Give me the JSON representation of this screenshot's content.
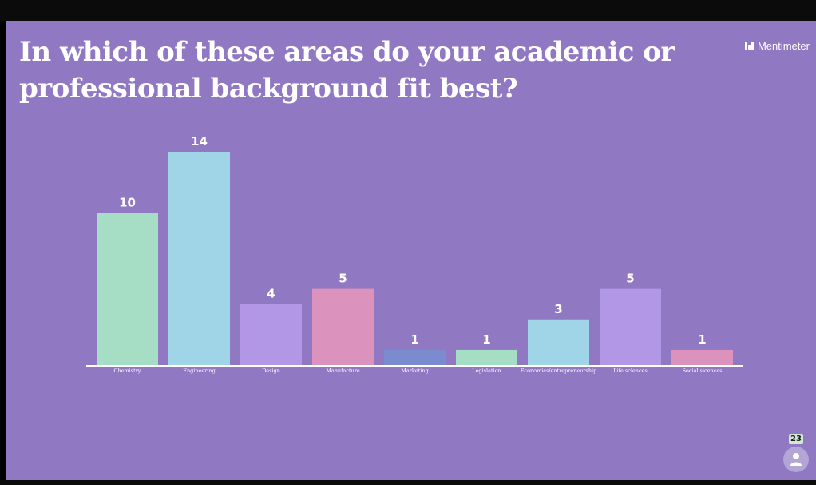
{
  "slide": {
    "title": "In which of these areas do your academic or professional background fit best?",
    "brand": "Mentimeter",
    "background_color": "#9178c3",
    "participants_count": "23"
  },
  "chart_data": {
    "type": "bar",
    "title": "In which of these areas do your academic or professional background fit best?",
    "xlabel": "",
    "ylabel": "",
    "ylim": [
      0,
      14
    ],
    "grid": false,
    "categories": [
      "Chemistry",
      "Engineering",
      "Design",
      "Manufacture",
      "Marketing",
      "Legislation",
      "Economics/entrepreneurship",
      "Life sciences",
      "Social sicences"
    ],
    "values": [
      10,
      14,
      4,
      5,
      1,
      1,
      3,
      5,
      1
    ],
    "colors": [
      "#a6dec5",
      "#a0d5e8",
      "#b197e6",
      "#db93be",
      "#7b8bd0",
      "#a6dec5",
      "#a0d5e8",
      "#b197e6",
      "#db93be"
    ]
  }
}
